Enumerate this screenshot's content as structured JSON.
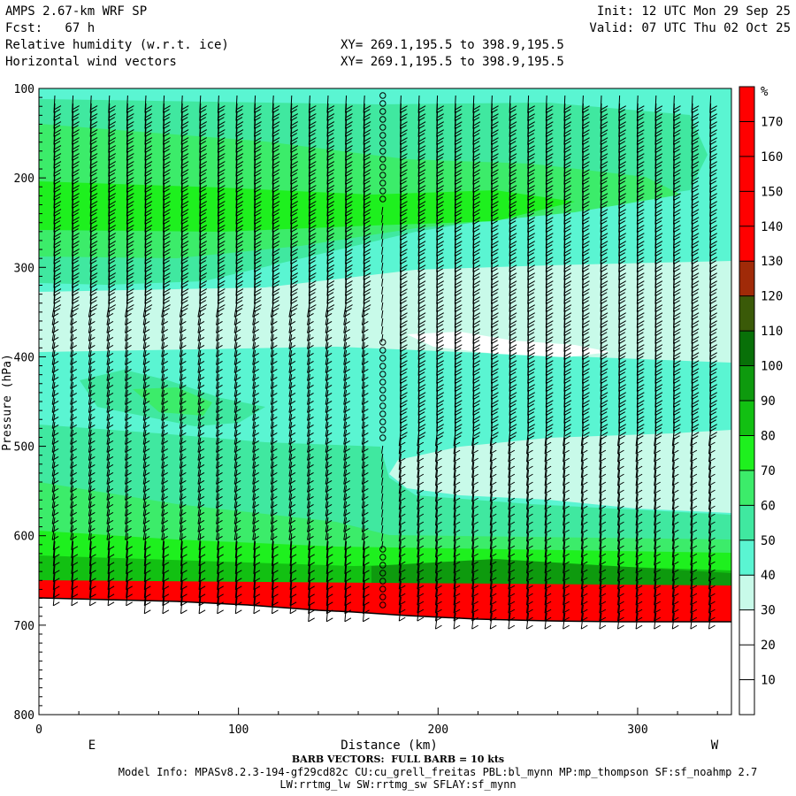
{
  "header": {
    "title": "AMPS 2.67-km WRF SP",
    "fcst": "Fcst:   67 h",
    "field1": "Relative humidity (w.r.t. ice)",
    "field2": "Horizontal wind vectors",
    "init": "Init: 12 UTC Mon 29 Sep 25",
    "valid": "Valid: 07 UTC Thu 02 Oct 25",
    "xy1": "XY= 269.1,195.5 to 398.9,195.5",
    "xy2": "XY= 269.1,195.5 to 398.9,195.5"
  },
  "footer": {
    "barb_note": "BARB VECTORS:  FULL BARB = 10 kts",
    "model_info": "Model Info: MPASv8.2.3-194-gf29cd82c CU:cu_grell_freitas PBL:bl_mynn MP:mp_thompson SF:sf_noahmp 2.7",
    "model_info2": "LW:rrtmg_lw SW:rrtmg_sw SFLAY:sf_mynn"
  },
  "chart_data": {
    "type": "heatmap",
    "xlabel": "Distance (km)",
    "ylabel": "Pressure (hPa)",
    "xlim": [
      0,
      347
    ],
    "ylim": [
      800,
      100
    ],
    "x_ticks": [
      0,
      100,
      200,
      300
    ],
    "y_ticks": [
      100,
      200,
      300,
      400,
      500,
      600,
      700,
      800
    ],
    "left_endpoint_label": "E",
    "right_endpoint_label": "W",
    "colorbar": {
      "unit": "%",
      "levels": [
        10,
        20,
        30,
        40,
        50,
        60,
        70,
        80,
        90,
        100,
        110,
        120,
        130,
        140,
        150,
        160,
        170
      ],
      "colors": [
        "#ffffff",
        "#ffffff",
        "#ffffff",
        "#c8fae9",
        "#5af5d2",
        "#40e8a0",
        "#3cec6a",
        "#1ef01e",
        "#12c012",
        "#0e9a0e",
        "#087008",
        "#3a5a08",
        "#a02a08",
        "#ff0000",
        "#ff0000",
        "#ff0000",
        "#ff0000",
        "#ff0000"
      ]
    },
    "rh_bands": [
      {
        "range": [
          100,
          115
        ],
        "rh": "40-50"
      },
      {
        "range": [
          115,
          200
        ],
        "rh": "60-70"
      },
      {
        "range": [
          200,
          260
        ],
        "rh": "70-80"
      },
      {
        "range": [
          260,
          330
        ],
        "rh": "50-60"
      },
      {
        "range": [
          330,
          400
        ],
        "rh": "30-40"
      },
      {
        "range": [
          400,
          470
        ],
        "rh": "50-60"
      },
      {
        "range": [
          470,
          560
        ],
        "rh": "40-50"
      },
      {
        "range": [
          560,
          630
        ],
        "rh": "70-80"
      },
      {
        "range": [
          630,
          660
        ],
        "rh": "80-100"
      },
      {
        "range": [
          660,
          690
        ],
        "rh": ">130"
      }
    ],
    "barb_note": "FULL BARB = 10 kts"
  }
}
